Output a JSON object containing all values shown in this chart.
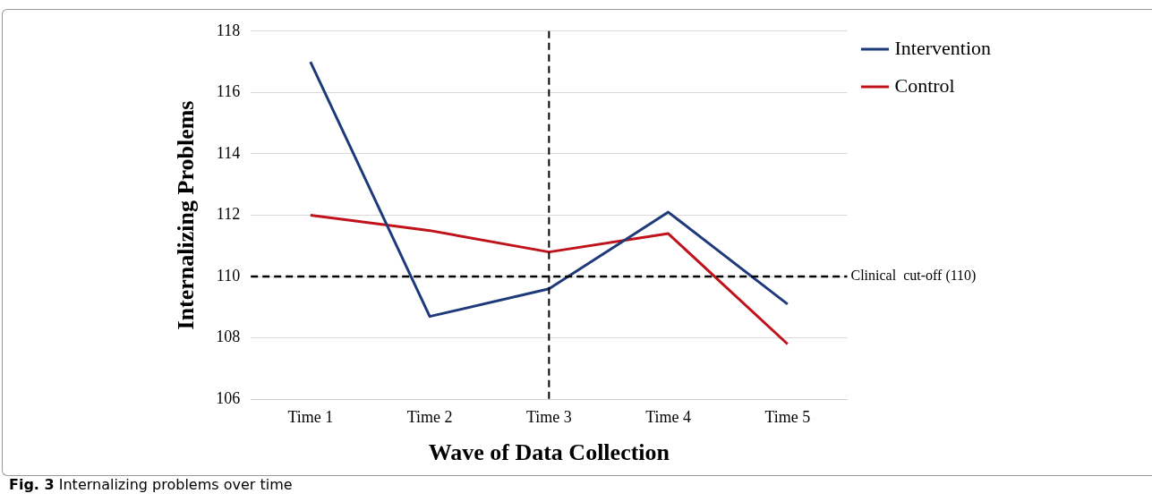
{
  "chart_data": {
    "type": "line",
    "xlabel": "Wave of Data Collection",
    "ylabel": "Internalizing Problems",
    "categories": [
      "Time 1",
      "Time 2",
      "Time 3",
      "Time 4",
      "Time 5"
    ],
    "series": [
      {
        "name": "Intervention",
        "color": "#1f3a7a",
        "values": [
          117.0,
          108.7,
          109.6,
          112.1,
          109.1
        ]
      },
      {
        "name": "Control",
        "color": "#c0121a",
        "values": [
          112.0,
          111.5,
          110.8,
          111.4,
          107.8
        ]
      }
    ],
    "ylim": [
      106,
      118
    ],
    "yticks": [
      106,
      108,
      110,
      112,
      114,
      116,
      118
    ],
    "ref_lines": [
      {
        "axis": "y",
        "value": 110,
        "label": "Clinical  cut-off (110)",
        "color": "#000000",
        "line_style": "dashed"
      },
      {
        "axis": "x",
        "value": "Time 3",
        "label": null,
        "color": "#000000",
        "line_style": "dashed"
      }
    ],
    "annotations": [
      "Fig. 3 Internalizing problems over time"
    ],
    "grid": "y",
    "legend": "top right",
    "marker": "none",
    "line_style": "solid"
  }
}
